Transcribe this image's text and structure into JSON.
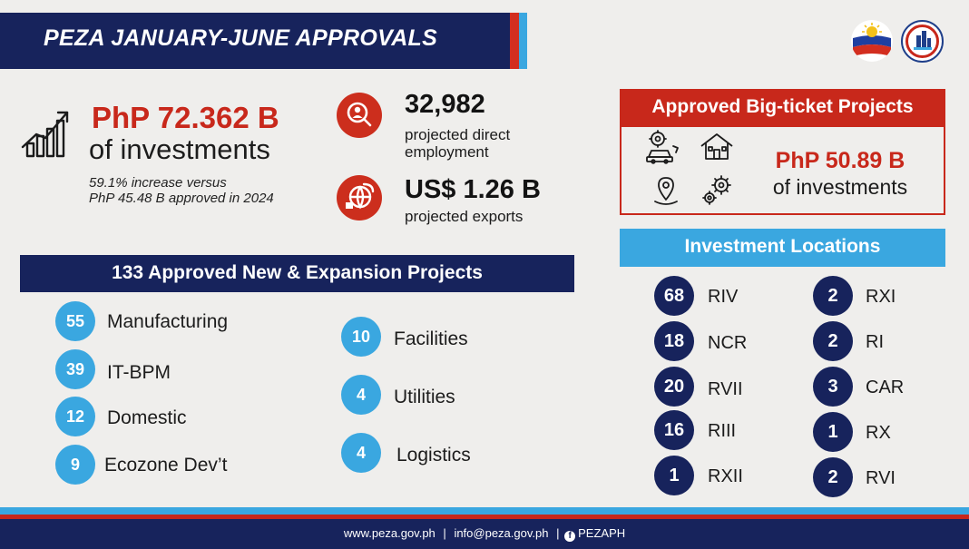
{
  "header": {
    "title": "PEZA JANUARY-JUNE APPROVALS"
  },
  "investments": {
    "amount": "PhP 72.362 B",
    "label": "of investments",
    "note_line1": "59.1% increase versus",
    "note_line2": "PhP 45.48 B approved in 2024"
  },
  "employment": {
    "value": "32,982",
    "label_line1": "projected direct",
    "label_line2": "employment"
  },
  "exports": {
    "value": "US$ 1.26 B",
    "label": "projected exports"
  },
  "big_ticket": {
    "title": "Approved Big-ticket Projects",
    "amount": "PhP 50.89 B",
    "label": "of investments",
    "icons": [
      "vehicle-gear-icon",
      "house-icon",
      "location-pin-icon",
      "gears-icon"
    ]
  },
  "projects": {
    "title": "133 Approved New & Expansion Projects",
    "items": [
      {
        "count": "55",
        "label": "Manufacturing"
      },
      {
        "count": "39",
        "label": "IT-BPM"
      },
      {
        "count": "12",
        "label": "Domestic"
      },
      {
        "count": "9",
        "label": "Ecozone Dev’t"
      },
      {
        "count": "10",
        "label": "Facilities"
      },
      {
        "count": "4",
        "label": "Utilities"
      },
      {
        "count": "4",
        "label": "Logistics"
      }
    ]
  },
  "locations": {
    "title": "Investment Locations",
    "items": [
      {
        "count": "68",
        "region": "RIV"
      },
      {
        "count": "18",
        "region": "NCR"
      },
      {
        "count": "20",
        "region": "RVII"
      },
      {
        "count": "16",
        "region": "RIII"
      },
      {
        "count": "1",
        "region": "RXII"
      },
      {
        "count": "2",
        "region": "RXI"
      },
      {
        "count": "2",
        "region": "RI"
      },
      {
        "count": "3",
        "region": "CAR"
      },
      {
        "count": "1",
        "region": "RX"
      },
      {
        "count": "2",
        "region": "RVI"
      }
    ]
  },
  "footer": {
    "website": "www.peza.gov.ph",
    "separator": "|",
    "email": "info@peza.gov.ph",
    "separator2": "|",
    "social": "PEZAPH"
  },
  "colors": {
    "navy": "#17235c",
    "red": "#c8281b",
    "sky_blue": "#3aa7e0",
    "background": "#efeeec"
  }
}
